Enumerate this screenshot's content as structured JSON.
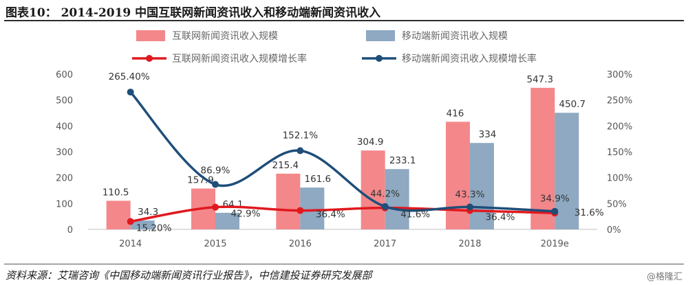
{
  "header": {
    "title": "图表10： 2014-2019 中国互联网新闻资讯收入和移动端新闻资讯收入"
  },
  "footer": {
    "source": "资料来源：艾瑞咨询《中国移动端新闻资讯行业报告》，中信建投证券研究发展部",
    "watermark": "@格隆汇"
  },
  "chart_data": {
    "type": "bar",
    "categories": [
      "2014",
      "2015",
      "2016",
      "2017",
      "2018",
      "2019e"
    ],
    "series": [
      {
        "name": "互联网新闻资讯收入规模",
        "kind": "bar",
        "axis": "left",
        "color": "#F4878A",
        "values": [
          110.5,
          157.9,
          215.4,
          304.9,
          416,
          547.3
        ],
        "labels": [
          "110.5",
          "157.9",
          "215.4",
          "304.9",
          "416",
          "547.3"
        ]
      },
      {
        "name": "移动端新闻资讯收入规模",
        "kind": "bar",
        "axis": "left",
        "color": "#8EA9C1",
        "values": [
          34.3,
          64.1,
          161.6,
          233.1,
          334,
          450.7
        ],
        "labels": [
          "34.3",
          "64.1",
          "161.6",
          "233.1",
          "334",
          "450.7"
        ]
      },
      {
        "name": "互联网新闻资讯收入规模增长率",
        "kind": "line",
        "axis": "right",
        "color": "#E0191E",
        "values": [
          15.2,
          42.9,
          36.4,
          41.6,
          36.4,
          31.6
        ],
        "labels": [
          "15.20%",
          "42.9%",
          "36.4%",
          "41.6%",
          "36.4%",
          "31.6%"
        ]
      },
      {
        "name": "移动端新闻资讯收入规模增长率",
        "kind": "line",
        "axis": "right",
        "color": "#1F4E79",
        "values": [
          265.4,
          86.9,
          152.1,
          44.2,
          43.3,
          34.9
        ],
        "labels": [
          "265.40%",
          "86.9%",
          "152.1%",
          "44.2%",
          "43.3%",
          "34.9%"
        ]
      }
    ],
    "y_left": {
      "ylim": [
        0,
        600
      ],
      "ticks": [
        "0",
        "100",
        "200",
        "300",
        "400",
        "500",
        "600"
      ]
    },
    "y_right": {
      "ylim": [
        0,
        300
      ],
      "ticks": [
        "0%",
        "50%",
        "100%",
        "150%",
        "200%",
        "250%",
        "300%"
      ]
    },
    "legend_position": "top",
    "grid": false
  }
}
